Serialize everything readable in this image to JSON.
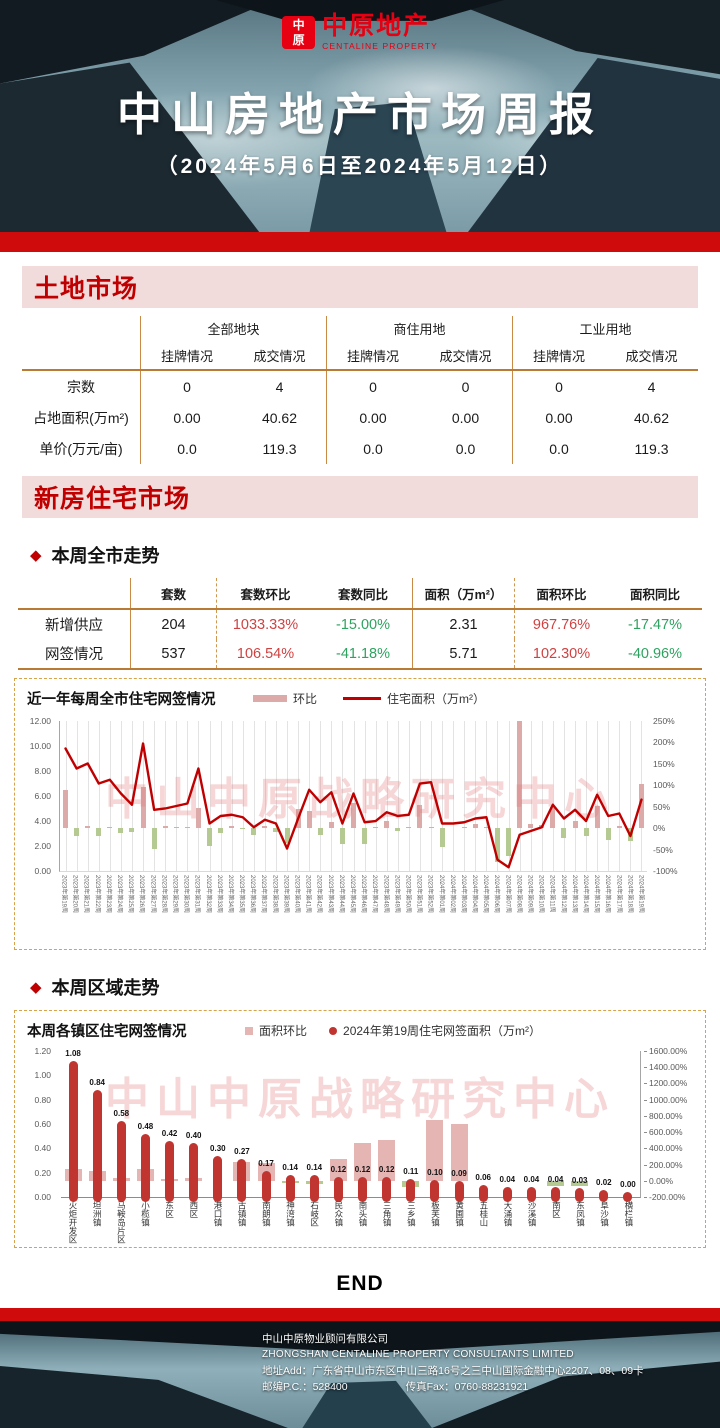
{
  "colors": {
    "up": "#cf4242",
    "down": "#2ea360",
    "plain": "#1a1a1a"
  },
  "header": {
    "logo": {
      "seal_char_top": "中",
      "seal_char_bottom": "原",
      "name_cn": "中原地产",
      "name_en": "CENTALINE PROPERTY"
    },
    "title": "中山房地产市场周报",
    "subtitle": "（2024年5月6日至2024年5月12日）"
  },
  "land_market": {
    "section_title": "土地市场",
    "table": {
      "group_headers": [
        "全部地块",
        "商住用地",
        "工业用地"
      ],
      "sub_headers": [
        "挂牌情况",
        "成交情况",
        "挂牌情况",
        "成交情况",
        "挂牌情况",
        "成交情况"
      ],
      "rows": [
        {
          "label": "宗数",
          "values": [
            "0",
            "4",
            "0",
            "0",
            "0",
            "4"
          ]
        },
        {
          "label": "占地面积(万m²)",
          "values": [
            "0.00",
            "40.62",
            "0.00",
            "0.00",
            "0.00",
            "40.62"
          ]
        },
        {
          "label": "单价(万元/亩)",
          "values": [
            "0.0",
            "119.3",
            "0.0",
            "0.0",
            "0.0",
            "119.3"
          ]
        }
      ]
    }
  },
  "new_housing": {
    "section_title": "新房住宅市场",
    "city_week_heading": "本周全市走势",
    "city_week_table": {
      "headers": [
        "",
        "套数",
        "套数环比",
        "套数同比",
        "面积（万m²）",
        "面积环比",
        "面积同比"
      ],
      "rows": [
        {
          "label": "新增供应",
          "cells": [
            {
              "v": "204",
              "c": "plain"
            },
            {
              "v": "1033.33%",
              "c": "up"
            },
            {
              "v": "-15.00%",
              "c": "down"
            },
            {
              "v": "2.31",
              "c": "plain"
            },
            {
              "v": "967.76%",
              "c": "up"
            },
            {
              "v": "-17.47%",
              "c": "down"
            }
          ]
        },
        {
          "label": "网签情况",
          "cells": [
            {
              "v": "537",
              "c": "plain"
            },
            {
              "v": "106.54%",
              "c": "up"
            },
            {
              "v": "-41.18%",
              "c": "down"
            },
            {
              "v": "5.71",
              "c": "plain"
            },
            {
              "v": "102.30%",
              "c": "up"
            },
            {
              "v": "-40.96%",
              "c": "down"
            }
          ]
        }
      ]
    },
    "region_week_heading": "本周区域走势"
  },
  "chart_data": [
    {
      "type": "bar+line",
      "title": "近一年每周全市住宅网签情况",
      "legend": [
        {
          "label": "环比",
          "swatch": "bar",
          "color": "#dcaaa9"
        },
        {
          "label": "住宅面积（万m²）",
          "swatch": "line",
          "color": "#c00000"
        }
      ],
      "x": [
        "2023年第19周",
        "2023年第20周",
        "2023年第21周",
        "2023年第22周",
        "2023年第23周",
        "2023年第24周",
        "2023年第25周",
        "2023年第26周",
        "2023年第27周",
        "2023年第28周",
        "2023年第29周",
        "2023年第30周",
        "2023年第31周",
        "2023年第32周",
        "2023年第33周",
        "2023年第34周",
        "2023年第35周",
        "2023年第36周",
        "2023年第37周",
        "2023年第38周",
        "2023年第39周",
        "2023年第40周",
        "2023年第41周",
        "2023年第42周",
        "2023年第43周",
        "2023年第44周",
        "2023年第45周",
        "2023年第46周",
        "2023年第47周",
        "2023年第48周",
        "2023年第49周",
        "2023年第50周",
        "2023年第51周",
        "2023年第52周",
        "2024年第01周",
        "2024年第02周",
        "2024年第03周",
        "2024年第04周",
        "2024年第05周",
        "2024年第06周",
        "2024年第07周",
        "2024年第08周",
        "2024年第09周",
        "2024年第10周",
        "2024年第11周",
        "2024年第12周",
        "2024年第13周",
        "2024年第14周",
        "2024年第15周",
        "2024年第16周",
        "2024年第17周",
        "2024年第18周",
        "2024年第19周"
      ],
      "series": [
        {
          "name": "环比",
          "type": "bar",
          "axis": "right",
          "unit": "%",
          "pos_color": "#dcaaa9",
          "neg_color": "#b5ca92",
          "values": [
            90,
            -18,
            5,
            -18,
            3,
            -12,
            -8,
            95,
            -48,
            4,
            2,
            3,
            48,
            -42,
            -12,
            4,
            -3,
            -15,
            6,
            -10,
            -35,
            45,
            40,
            -15,
            15,
            -38,
            58,
            -36,
            3,
            17,
            -7,
            2,
            55,
            2,
            -45,
            0,
            2,
            10,
            2,
            -78,
            -65,
            250,
            10,
            7,
            50,
            -22,
            17,
            -18,
            52,
            -27,
            5,
            -30,
            102.3
          ]
        },
        {
          "name": "住宅面积（万m²）",
          "type": "line",
          "axis": "left",
          "unit": "万m²",
          "color": "#c00000",
          "values": [
            9.8,
            8.2,
            8.6,
            7.0,
            7.3,
            6.2,
            5.3,
            10.2,
            4.9,
            5.0,
            5.2,
            5.4,
            8.2,
            3.8,
            4.4,
            4.5,
            4.3,
            3.5,
            4.1,
            3.8,
            1.8,
            4.2,
            6.5,
            5.5,
            6.3,
            3.8,
            6.2,
            3.9,
            4.0,
            4.7,
            4.4,
            4.5,
            7.0,
            7.1,
            3.8,
            3.8,
            3.9,
            4.2,
            4.3,
            0.9,
            0.3,
            2.9,
            3.2,
            3.5,
            5.3,
            4.2,
            4.9,
            4.0,
            6.1,
            4.4,
            4.6,
            2.8,
            5.71
          ]
        }
      ],
      "left_axis": {
        "min": 0,
        "max": 12,
        "ticks": [
          "12.00",
          "10.00",
          "8.00",
          "6.00",
          "4.00",
          "2.00",
          "0.00"
        ]
      },
      "right_axis": {
        "min": -100,
        "max": 250,
        "ticks": [
          "250%",
          "200%",
          "150%",
          "100%",
          "50%",
          "0%",
          "-50%",
          "-100%"
        ]
      },
      "watermark": "中山中原战略研究中心"
    },
    {
      "type": "bar",
      "title": "本周各镇区住宅网签情况",
      "legend": [
        {
          "label": "面积环比",
          "swatch": "square",
          "color": "#e5b5b4"
        },
        {
          "label": "2024年第19周住宅网签面积（万m²）",
          "swatch": "dot",
          "color": "#c13531"
        }
      ],
      "categories": [
        "火炬开发区",
        "坦洲镇",
        "马鞍岛片区",
        "小榄镇",
        "东区",
        "西区",
        "港口镇",
        "古镇镇",
        "南朗镇",
        "神湾镇",
        "石岐区",
        "民众镇",
        "南头镇",
        "三角镇",
        "三乡镇",
        "板芙镇",
        "黄圃镇",
        "五桂山",
        "大涌镇",
        "沙溪镇",
        "南区",
        "东凤镇",
        "阜沙镇",
        "横栏镇"
      ],
      "series": [
        {
          "name": "面积环比",
          "type": "bar",
          "axis": "right",
          "unit": "%",
          "pos_color": "#e5b5b4",
          "neg_color": "#b5ca92",
          "values": [
            140,
            115,
            30,
            150,
            25,
            40,
            null,
            230,
            220,
            -30,
            -40,
            265,
            460,
            505,
            -80,
            750,
            700,
            null,
            null,
            null,
            -60,
            -60,
            null,
            null
          ]
        },
        {
          "name": "2024年第19周住宅网签面积（万m²）",
          "type": "bar",
          "axis": "left",
          "unit": "万m²",
          "color": "#c13531",
          "labels_shown": true,
          "values": [
            1.08,
            0.84,
            0.58,
            0.48,
            0.42,
            0.4,
            0.3,
            0.27,
            0.17,
            0.14,
            0.14,
            0.12,
            0.12,
            0.12,
            0.11,
            0.1,
            0.09,
            0.06,
            0.04,
            0.04,
            0.04,
            0.03,
            0.02,
            0.0
          ]
        }
      ],
      "left_axis": {
        "min": 0,
        "max": 1.2,
        "ticks": [
          "1.20",
          "1.00",
          "0.80",
          "0.60",
          "0.40",
          "0.20",
          "0.00"
        ]
      },
      "right_axis": {
        "min": -200,
        "max": 1600,
        "ticks": [
          "1600.00%",
          "1400.00%",
          "1200.00%",
          "1000.00%",
          "800.00%",
          "600.00%",
          "400.00%",
          "200.00%",
          "0.00%",
          "-200.00%"
        ]
      },
      "watermark": "中山中原战略研究中心"
    }
  ],
  "end_label": "END",
  "footer": {
    "company_cn": "中山中原物业顾问有限公司",
    "company_en": "ZHONGSHAN CENTALINE PROPERTY CONSULTANTS LIMITED",
    "address": "地址Add：广东省中山市东区中山三路16号之三中山国际金融中心2207、08、09卡",
    "postcode": "邮编P.C.：528400",
    "fax": "传真Fax：0760-88231921"
  }
}
